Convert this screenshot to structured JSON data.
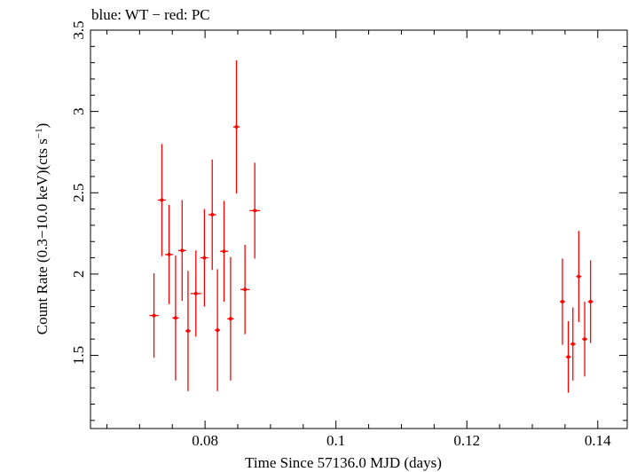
{
  "chart_data": {
    "type": "scatter",
    "title": "blue: WT − red: PC",
    "xlabel": "Time Since 57136.0 MJD (days)",
    "ylabel_main": "Count Rate (0.3−10.0 keV)(cts s",
    "ylabel_sup": "−1",
    "ylabel_tail": ")",
    "xlim": [
      0.0625,
      0.1445
    ],
    "ylim": [
      1.05,
      3.5
    ],
    "x_major_ticks": [
      0.08,
      0.1,
      0.12,
      0.14
    ],
    "x_tick_labels": [
      "0.08",
      "0.1",
      "0.12",
      "0.14"
    ],
    "x_minor_step": 0.005,
    "y_major_ticks": [
      1.5,
      2,
      2.5,
      3,
      3.5
    ],
    "y_tick_labels": [
      "1.5",
      "2",
      "2.5",
      "3",
      "3.5"
    ],
    "y_minor_step": 0.1,
    "grid": false,
    "series": [
      {
        "color": "#ff0000",
        "points": [
          {
            "x": 0.0722,
            "y": 1.745,
            "xerr": 0.0007,
            "yerr_lo": 0.26,
            "yerr_hi": 0.26
          },
          {
            "x": 0.0734,
            "y": 2.455,
            "xerr": 0.0006,
            "yerr_lo": 0.345,
            "yerr_hi": 0.345
          },
          {
            "x": 0.0745,
            "y": 2.12,
            "xerr": 0.0006,
            "yerr_lo": 0.305,
            "yerr_hi": 0.305
          },
          {
            "x": 0.0755,
            "y": 1.73,
            "xerr": 0.0005,
            "yerr_lo": 0.385,
            "yerr_hi": 0.385
          },
          {
            "x": 0.0765,
            "y": 2.145,
            "xerr": 0.0006,
            "yerr_lo": 0.31,
            "yerr_hi": 0.31
          },
          {
            "x": 0.0774,
            "y": 1.65,
            "xerr": 0.0004,
            "yerr_lo": 0.37,
            "yerr_hi": 0.37
          },
          {
            "x": 0.0786,
            "y": 1.88,
            "xerr": 0.0008,
            "yerr_lo": 0.265,
            "yerr_hi": 0.265
          },
          {
            "x": 0.0799,
            "y": 2.1,
            "xerr": 0.0006,
            "yerr_lo": 0.3,
            "yerr_hi": 0.3
          },
          {
            "x": 0.0811,
            "y": 2.365,
            "xerr": 0.0006,
            "yerr_lo": 0.34,
            "yerr_hi": 0.34
          },
          {
            "x": 0.0819,
            "y": 1.655,
            "xerr": 0.0004,
            "yerr_lo": 0.375,
            "yerr_hi": 0.375
          },
          {
            "x": 0.0829,
            "y": 2.14,
            "xerr": 0.0006,
            "yerr_lo": 0.31,
            "yerr_hi": 0.31
          },
          {
            "x": 0.0839,
            "y": 1.725,
            "xerr": 0.0005,
            "yerr_lo": 0.38,
            "yerr_hi": 0.38
          },
          {
            "x": 0.0848,
            "y": 2.905,
            "xerr": 0.0005,
            "yerr_lo": 0.41,
            "yerr_hi": 0.41
          },
          {
            "x": 0.0861,
            "y": 1.905,
            "xerr": 0.0007,
            "yerr_lo": 0.275,
            "yerr_hi": 0.275
          },
          {
            "x": 0.0876,
            "y": 2.39,
            "xerr": 0.0008,
            "yerr_lo": 0.295,
            "yerr_hi": 0.295
          },
          {
            "x": 0.1346,
            "y": 1.83,
            "xerr": 0.0004,
            "yerr_lo": 0.265,
            "yerr_hi": 0.265
          },
          {
            "x": 0.1355,
            "y": 1.49,
            "xerr": 0.0004,
            "yerr_lo": 0.22,
            "yerr_hi": 0.22
          },
          {
            "x": 0.1362,
            "y": 1.57,
            "xerr": 0.0004,
            "yerr_lo": 0.225,
            "yerr_hi": 0.225
          },
          {
            "x": 0.1371,
            "y": 1.985,
            "xerr": 0.0004,
            "yerr_lo": 0.28,
            "yerr_hi": 0.28
          },
          {
            "x": 0.138,
            "y": 1.6,
            "xerr": 0.0004,
            "yerr_lo": 0.23,
            "yerr_hi": 0.23
          },
          {
            "x": 0.1389,
            "y": 1.83,
            "xerr": 0.0004,
            "yerr_lo": 0.255,
            "yerr_hi": 0.255
          }
        ]
      }
    ]
  }
}
